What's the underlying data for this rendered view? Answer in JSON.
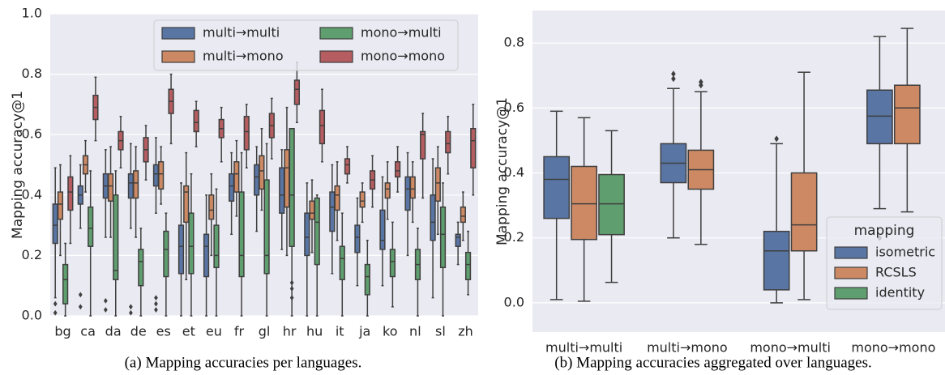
{
  "chart_data": [
    {
      "type": "box",
      "caption": "(a) Mapping accuracies per languages.",
      "ylabel": "Mapping accuracy@1",
      "categories": [
        "bg",
        "ca",
        "da",
        "de",
        "es",
        "et",
        "eu",
        "fr",
        "gl",
        "hr",
        "hu",
        "it",
        "ja",
        "ko",
        "nl",
        "sl",
        "zh"
      ],
      "ylim": [
        0,
        1
      ],
      "yticks": [
        {
          "value": 0,
          "label": "0.0"
        },
        {
          "value": 0.2,
          "label": "0.2"
        },
        {
          "value": 0.4,
          "label": "0.4"
        },
        {
          "value": 0.6,
          "label": "0.6"
        },
        {
          "value": 0.8,
          "label": "0.8"
        },
        {
          "value": 1,
          "label": "1.0"
        }
      ],
      "grid": true,
      "legend": "upper center",
      "series": [
        {
          "name": "multi→multi",
          "color": "#5975a4",
          "values": [
            [
              0.06,
              0.24,
              0.3,
              0.37,
              0.49
            ],
            [
              0.29,
              0.37,
              0.4,
              0.43,
              0.5
            ],
            [
              0.26,
              0.39,
              0.43,
              0.47,
              0.55
            ],
            [
              0.29,
              0.39,
              0.44,
              0.47,
              0.57
            ],
            [
              0.34,
              0.43,
              0.47,
              0.5,
              0.59
            ],
            [
              0.0,
              0.14,
              0.23,
              0.3,
              0.44
            ],
            [
              0.0,
              0.13,
              0.23,
              0.27,
              0.4
            ],
            [
              0.27,
              0.38,
              0.43,
              0.47,
              0.54
            ],
            [
              0.28,
              0.4,
              0.46,
              0.5,
              0.56
            ],
            [
              0.22,
              0.34,
              0.4,
              0.49,
              0.55
            ],
            [
              0.0,
              0.2,
              0.26,
              0.34,
              0.44
            ],
            [
              0.14,
              0.28,
              0.36,
              0.41,
              0.5
            ],
            [
              0.1,
              0.21,
              0.26,
              0.3,
              0.39
            ],
            [
              0.1,
              0.22,
              0.25,
              0.35,
              0.46
            ],
            [
              0.2,
              0.35,
              0.42,
              0.46,
              0.54
            ],
            [
              0.06,
              0.25,
              0.31,
              0.4,
              0.52
            ],
            [
              0.17,
              0.23,
              0.26,
              0.27,
              0.31
            ]
          ],
          "outliers": [
            [
              0.01,
              0.04
            ],
            [
              0.03,
              0.07
            ],
            [
              0.02,
              0.05
            ],
            [
              0.01,
              0.03
            ],
            [
              0.02,
              0.04,
              0.06
            ],
            [],
            [],
            [],
            [],
            [],
            [],
            [],
            [],
            [],
            [],
            [],
            []
          ]
        },
        {
          "name": "multi→mono",
          "color": "#cc8963",
          "values": [
            [
              0.2,
              0.32,
              0.37,
              0.41,
              0.5
            ],
            [
              0.41,
              0.47,
              0.5,
              0.53,
              0.58
            ],
            [
              0.26,
              0.38,
              0.43,
              0.47,
              0.56
            ],
            [
              0.26,
              0.39,
              0.44,
              0.48,
              0.56
            ],
            [
              0.37,
              0.42,
              0.47,
              0.51,
              0.56
            ],
            [
              0.12,
              0.31,
              0.41,
              0.43,
              0.54
            ],
            [
              0.2,
              0.32,
              0.35,
              0.4,
              0.47
            ],
            [
              0.33,
              0.41,
              0.47,
              0.51,
              0.58
            ],
            [
              0.35,
              0.42,
              0.48,
              0.53,
              0.62
            ],
            [
              0.2,
              0.36,
              0.49,
              0.55,
              0.69
            ],
            [
              0.21,
              0.32,
              0.34,
              0.38,
              0.45
            ],
            [
              0.25,
              0.35,
              0.4,
              0.43,
              0.51
            ],
            [
              0.31,
              0.36,
              0.38,
              0.41,
              0.44
            ],
            [
              0.32,
              0.39,
              0.42,
              0.44,
              0.51
            ],
            [
              0.31,
              0.39,
              0.42,
              0.46,
              0.51
            ],
            [
              0.27,
              0.38,
              0.44,
              0.49,
              0.56
            ],
            [
              0.25,
              0.31,
              0.33,
              0.36,
              0.41
            ]
          ],
          "outliers": [
            [],
            [],
            [],
            [],
            [],
            [],
            [],
            [],
            [],
            [],
            [],
            [],
            [],
            [],
            [],
            [],
            []
          ]
        },
        {
          "name": "mono→multi",
          "color": "#5f9e6e",
          "values": [
            [
              0.0,
              0.04,
              0.12,
              0.17,
              0.24
            ],
            [
              0.0,
              0.23,
              0.29,
              0.36,
              0.48
            ],
            [
              0.0,
              0.12,
              0.15,
              0.4,
              0.48
            ],
            [
              0.0,
              0.1,
              0.18,
              0.22,
              0.29
            ],
            [
              0.0,
              0.13,
              0.22,
              0.28,
              0.34
            ],
            [
              0.0,
              0.14,
              0.23,
              0.34,
              0.47
            ],
            [
              0.0,
              0.16,
              0.2,
              0.3,
              0.42
            ],
            [
              0.0,
              0.13,
              0.2,
              0.41,
              0.54
            ],
            [
              0.0,
              0.14,
              0.2,
              0.45,
              0.57
            ],
            [
              0.0,
              0.23,
              0.4,
              0.62,
              0.62
            ],
            [
              0.0,
              0.17,
              0.31,
              0.39,
              0.4
            ],
            [
              0.0,
              0.12,
              0.19,
              0.23,
              0.34
            ],
            [
              0.0,
              0.07,
              0.13,
              0.17,
              0.25
            ],
            [
              0.03,
              0.13,
              0.18,
              0.22,
              0.31
            ],
            [
              0.0,
              0.12,
              0.17,
              0.22,
              0.29
            ],
            [
              0.0,
              0.16,
              0.27,
              0.36,
              0.44
            ],
            [
              0.07,
              0.12,
              0.17,
              0.21,
              0.28
            ]
          ],
          "outliers": [
            [],
            [],
            [],
            [],
            [],
            [],
            [],
            [],
            [],
            [
              0.06,
              0.09,
              0.11
            ],
            [],
            [],
            [],
            [],
            [],
            [],
            []
          ]
        },
        {
          "name": "mono→mono",
          "color": "#b55d60",
          "values": [
            [
              0.24,
              0.35,
              0.41,
              0.46,
              0.53
            ],
            [
              0.58,
              0.65,
              0.69,
              0.73,
              0.79
            ],
            [
              0.49,
              0.55,
              0.58,
              0.61,
              0.66
            ],
            [
              0.45,
              0.51,
              0.55,
              0.59,
              0.63
            ],
            [
              0.57,
              0.67,
              0.71,
              0.75,
              0.8
            ],
            [
              0.56,
              0.61,
              0.64,
              0.68,
              0.71
            ],
            [
              0.51,
              0.59,
              0.62,
              0.65,
              0.69
            ],
            [
              0.49,
              0.55,
              0.61,
              0.66,
              0.7
            ],
            [
              0.52,
              0.59,
              0.63,
              0.67,
              0.72
            ],
            [
              0.64,
              0.7,
              0.75,
              0.78,
              0.84
            ],
            [
              0.51,
              0.57,
              0.63,
              0.68,
              0.75
            ],
            [
              0.44,
              0.47,
              0.5,
              0.52,
              0.56
            ],
            [
              0.36,
              0.42,
              0.45,
              0.48,
              0.53
            ],
            [
              0.41,
              0.46,
              0.48,
              0.51,
              0.56
            ],
            [
              0.39,
              0.52,
              0.6,
              0.61,
              0.67
            ],
            [
              0.47,
              0.54,
              0.57,
              0.61,
              0.66
            ],
            [
              0.4,
              0.49,
              0.58,
              0.62,
              0.7
            ]
          ],
          "outliers": [
            [],
            [],
            [],
            [],
            [],
            [],
            [],
            [],
            [],
            [],
            [],
            [],
            [],
            [],
            [],
            [],
            []
          ]
        }
      ]
    },
    {
      "type": "box",
      "caption": "(b) Mapping accuracies aggregated over languages.",
      "ylabel": "Mapping accuracy@1",
      "categories": [
        "multi→multi",
        "multi→mono",
        "mono→multi",
        "mono→mono"
      ],
      "ylim": [
        -0.09,
        0.9
      ],
      "yticks": [
        {
          "value": 0,
          "label": "0.0"
        },
        {
          "value": 0.2,
          "label": "0.2"
        },
        {
          "value": 0.4,
          "label": "0.4"
        },
        {
          "value": 0.6,
          "label": "0.6"
        },
        {
          "value": 0.8,
          "label": "0.8"
        }
      ],
      "grid": true,
      "legend": "lower right",
      "legend_title": "mapping",
      "series": [
        {
          "name": "isometric",
          "color": "#5975a4",
          "values": [
            [
              0.01,
              0.26,
              0.38,
              0.45,
              0.59
            ],
            [
              0.2,
              0.37,
              0.43,
              0.49,
              0.66
            ],
            [
              0.0,
              0.04,
              0.16,
              0.22,
              0.49
            ],
            [
              0.29,
              0.49,
              0.575,
              0.655,
              0.82
            ]
          ],
          "outliers": [
            [],
            [
              0.69,
              0.705
            ],
            [
              0.505
            ],
            [
              0.2
            ]
          ]
        },
        {
          "name": "RCSLS",
          "color": "#cc8963",
          "values": [
            [
              0.005,
              0.195,
              0.305,
              0.42,
              0.57
            ],
            [
              0.18,
              0.35,
              0.41,
              0.47,
              0.65
            ],
            [
              0.01,
              0.16,
              0.24,
              0.4,
              0.71
            ],
            [
              0.28,
              0.49,
              0.6,
              0.67,
              0.845
            ]
          ],
          "outliers": [
            [],
            [
              0.67,
              0.68
            ],
            [],
            []
          ]
        },
        {
          "name": "identity",
          "color": "#5f9e6e",
          "values": [
            [
              0.063,
              0.21,
              0.305,
              0.395,
              0.53
            ],
            null,
            null,
            null
          ],
          "outliers": [
            [],
            [],
            [],
            []
          ]
        }
      ]
    }
  ]
}
